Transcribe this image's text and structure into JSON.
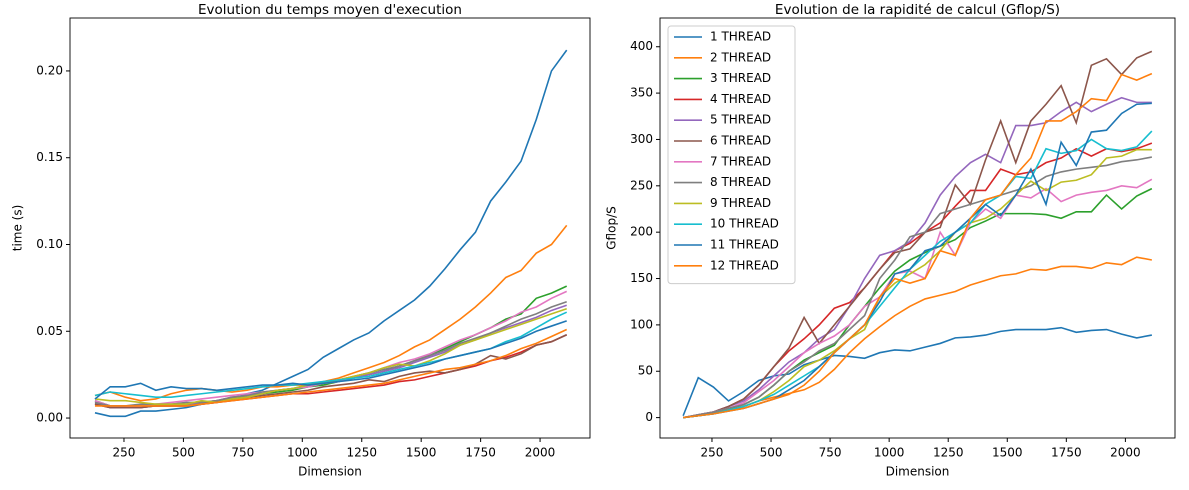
{
  "chart_data": [
    {
      "type": "line",
      "title": "Evolution du temps moyen d'execution",
      "x_label": "Dimension",
      "y_label": "time (s)",
      "x": [
        128,
        192,
        256,
        320,
        384,
        448,
        512,
        576,
        640,
        704,
        768,
        832,
        896,
        960,
        1024,
        1088,
        1152,
        1216,
        1280,
        1344,
        1408,
        1472,
        1536,
        1600,
        1664,
        1728,
        1792,
        1856,
        1920,
        1984,
        2048,
        2112
      ],
      "xlim": [
        23,
        2210
      ],
      "xticks": [
        250,
        500,
        750,
        1000,
        1250,
        1500,
        1750,
        2000
      ],
      "ylim": [
        -0.0115,
        0.2305
      ],
      "yticks": [
        {
          "value": 0,
          "label": "0.00"
        },
        {
          "value": 0.05,
          "label": "0.05"
        },
        {
          "value": 0.1,
          "label": "0.10"
        },
        {
          "value": 0.15,
          "label": "0.15"
        },
        {
          "value": 0.2,
          "label": "0.20"
        }
      ],
      "series": [
        {
          "color": "#1f77b4",
          "values": [
            0.003,
            0.001,
            0.001,
            0.004,
            0.004,
            0.005,
            0.006,
            0.008,
            0.009,
            0.011,
            0.014,
            0.016,
            0.02,
            0.024,
            0.028,
            0.035,
            0.04,
            0.045,
            0.049,
            0.056,
            0.062,
            0.068,
            0.076,
            0.086,
            0.097,
            0.107,
            0.125,
            0.136,
            0.148,
            0.172,
            0.2,
            0.212
          ]
        },
        {
          "color": "#ff7f0e",
          "values": [
            0.013,
            0.015,
            0.012,
            0.01,
            0.011,
            0.014,
            0.016,
            0.017,
            0.016,
            0.015,
            0.016,
            0.018,
            0.018,
            0.019,
            0.019,
            0.021,
            0.023,
            0.026,
            0.029,
            0.032,
            0.036,
            0.041,
            0.045,
            0.051,
            0.057,
            0.064,
            0.072,
            0.081,
            0.085,
            0.095,
            0.1,
            0.111
          ]
        },
        {
          "color": "#2ca02c",
          "values": [
            0.01,
            0.007,
            0.007,
            0.007,
            0.008,
            0.008,
            0.008,
            0.009,
            0.01,
            0.011,
            0.013,
            0.014,
            0.015,
            0.016,
            0.018,
            0.019,
            0.021,
            0.023,
            0.025,
            0.027,
            0.03,
            0.033,
            0.036,
            0.04,
            0.044,
            0.048,
            0.052,
            0.057,
            0.06,
            0.069,
            0.072,
            0.076
          ]
        },
        {
          "color": "#d62728",
          "values": [
            0.008,
            0.006,
            0.006,
            0.006,
            0.007,
            0.007,
            0.007,
            0.008,
            0.009,
            0.01,
            0.011,
            0.012,
            0.013,
            0.014,
            0.014,
            0.015,
            0.016,
            0.017,
            0.018,
            0.019,
            0.021,
            0.022,
            0.024,
            0.026,
            0.028,
            0.03,
            0.033,
            0.035,
            0.038,
            0.042,
            0.044,
            0.048
          ]
        },
        {
          "color": "#9467bd",
          "values": [
            0.009,
            0.006,
            0.006,
            0.006,
            0.007,
            0.007,
            0.008,
            0.009,
            0.01,
            0.012,
            0.013,
            0.014,
            0.016,
            0.017,
            0.018,
            0.02,
            0.021,
            0.023,
            0.025,
            0.027,
            0.029,
            0.032,
            0.035,
            0.038,
            0.042,
            0.045,
            0.049,
            0.052,
            0.055,
            0.058,
            0.062,
            0.065
          ]
        },
        {
          "color": "#8c564b",
          "values": [
            0.008,
            0.006,
            0.006,
            0.006,
            0.007,
            0.007,
            0.007,
            0.008,
            0.01,
            0.011,
            0.012,
            0.013,
            0.014,
            0.015,
            0.016,
            0.018,
            0.019,
            0.02,
            0.022,
            0.021,
            0.024,
            0.026,
            0.027,
            0.026,
            0.028,
            0.031,
            0.036,
            0.034,
            0.037,
            0.042,
            0.044,
            0.048
          ]
        },
        {
          "color": "#e377c2",
          "values": [
            0.01,
            0.007,
            0.007,
            0.007,
            0.008,
            0.009,
            0.01,
            0.011,
            0.012,
            0.013,
            0.014,
            0.015,
            0.016,
            0.017,
            0.018,
            0.02,
            0.021,
            0.024,
            0.026,
            0.029,
            0.032,
            0.034,
            0.037,
            0.041,
            0.045,
            0.048,
            0.052,
            0.056,
            0.061,
            0.064,
            0.069,
            0.073
          ]
        },
        {
          "color": "#7f7f7f",
          "values": [
            0.009,
            0.007,
            0.007,
            0.008,
            0.008,
            0.008,
            0.009,
            0.009,
            0.01,
            0.012,
            0.013,
            0.015,
            0.016,
            0.017,
            0.019,
            0.02,
            0.022,
            0.024,
            0.026,
            0.028,
            0.03,
            0.033,
            0.036,
            0.039,
            0.043,
            0.046,
            0.049,
            0.053,
            0.057,
            0.06,
            0.064,
            0.067
          ]
        },
        {
          "color": "#bcbd22",
          "values": [
            0.011,
            0.01,
            0.01,
            0.009,
            0.008,
            0.008,
            0.008,
            0.01,
            0.009,
            0.011,
            0.012,
            0.014,
            0.016,
            0.017,
            0.019,
            0.02,
            0.022,
            0.024,
            0.026,
            0.029,
            0.031,
            0.03,
            0.033,
            0.037,
            0.042,
            0.045,
            0.048,
            0.051,
            0.054,
            0.057,
            0.06,
            0.063
          ]
        },
        {
          "color": "#17becf",
          "values": [
            0.013,
            0.015,
            0.014,
            0.013,
            0.012,
            0.012,
            0.013,
            0.014,
            0.015,
            0.016,
            0.017,
            0.018,
            0.019,
            0.019,
            0.02,
            0.021,
            0.022,
            0.023,
            0.024,
            0.026,
            0.028,
            0.03,
            0.032,
            0.034,
            0.036,
            0.038,
            0.04,
            0.044,
            0.047,
            0.052,
            0.057,
            0.061
          ]
        },
        {
          "color": "#1f77b4",
          "values": [
            0.011,
            0.018,
            0.018,
            0.02,
            0.016,
            0.018,
            0.017,
            0.017,
            0.016,
            0.017,
            0.018,
            0.019,
            0.019,
            0.02,
            0.019,
            0.02,
            0.021,
            0.022,
            0.023,
            0.025,
            0.027,
            0.029,
            0.031,
            0.034,
            0.036,
            0.038,
            0.04,
            0.043,
            0.046,
            0.05,
            0.053,
            0.056
          ]
        },
        {
          "color": "#ff7f0e",
          "values": [
            0.007,
            0.007,
            0.007,
            0.007,
            0.007,
            0.007,
            0.007,
            0.008,
            0.009,
            0.01,
            0.011,
            0.012,
            0.013,
            0.014,
            0.015,
            0.016,
            0.017,
            0.018,
            0.019,
            0.02,
            0.022,
            0.024,
            0.026,
            0.028,
            0.029,
            0.031,
            0.033,
            0.036,
            0.04,
            0.043,
            0.047,
            0.051
          ]
        }
      ]
    },
    {
      "type": "line",
      "title": "Evolution de la rapidité de calcul (Gflop/S)",
      "x_label": "Dimension",
      "y_label": "Gflop/S",
      "legend": "upper left",
      "x": [
        128,
        192,
        256,
        320,
        384,
        448,
        512,
        576,
        640,
        704,
        768,
        832,
        896,
        960,
        1024,
        1088,
        1152,
        1216,
        1280,
        1344,
        1408,
        1472,
        1536,
        1600,
        1664,
        1728,
        1792,
        1856,
        1920,
        1984,
        2048,
        2112
      ],
      "xlim": [
        30,
        2210
      ],
      "xticks": [
        250,
        500,
        750,
        1000,
        1250,
        1500,
        1750,
        2000
      ],
      "ylim": [
        -22,
        431
      ],
      "yticks": [
        0,
        50,
        100,
        150,
        200,
        250,
        300,
        350,
        400
      ],
      "series": [
        {
          "name": "1 THREAD",
          "color": "#1f77b4",
          "values": [
            2,
            43,
            33,
            18,
            28,
            40,
            45,
            47,
            57,
            62,
            67,
            66,
            64,
            70,
            73,
            72,
            76,
            80,
            86,
            87,
            89,
            93,
            95,
            95,
            95,
            97,
            92,
            94,
            95,
            90,
            86,
            89
          ]
        },
        {
          "name": "2 THREAD",
          "color": "#ff7f0e",
          "values": [
            0,
            2,
            5,
            8,
            12,
            18,
            22,
            26,
            30,
            38,
            52,
            70,
            85,
            98,
            110,
            120,
            128,
            132,
            136,
            143,
            148,
            153,
            155,
            160,
            159,
            163,
            163,
            161,
            167,
            165,
            173,
            170
          ]
        },
        {
          "name": "3 THREAD",
          "color": "#2ca02c",
          "values": [
            0,
            2,
            5,
            9,
            14,
            22,
            35,
            50,
            62,
            70,
            78,
            100,
            120,
            140,
            158,
            170,
            178,
            185,
            192,
            205,
            212,
            220,
            220,
            220,
            219,
            215,
            222,
            222,
            240,
            225,
            239,
            247
          ]
        },
        {
          "name": "4 THREAD",
          "color": "#d62728",
          "values": [
            0,
            3,
            6,
            12,
            20,
            35,
            55,
            72,
            85,
            100,
            118,
            124,
            140,
            160,
            180,
            188,
            200,
            210,
            228,
            245,
            245,
            268,
            262,
            265,
            275,
            280,
            290,
            282,
            290,
            287,
            290,
            296
          ]
        },
        {
          "name": "5 THREAD",
          "color": "#9467bd",
          "values": [
            0,
            3,
            6,
            12,
            18,
            30,
            45,
            60,
            70,
            85,
            95,
            120,
            150,
            175,
            180,
            190,
            210,
            240,
            260,
            275,
            284,
            275,
            315,
            315,
            318,
            330,
            340,
            330,
            338,
            345,
            340,
            340
          ]
        },
        {
          "name": "6 THREAD",
          "color": "#8c564b",
          "values": [
            0,
            3,
            6,
            12,
            20,
            35,
            55,
            75,
            108,
            80,
            100,
            120,
            140,
            160,
            178,
            182,
            200,
            205,
            251,
            230,
            278,
            320,
            275,
            320,
            338,
            358,
            318,
            380,
            387,
            370,
            388,
            395
          ]
        },
        {
          "name": "7 THREAD",
          "color": "#e377c2",
          "values": [
            0,
            3,
            6,
            10,
            16,
            28,
            40,
            55,
            70,
            80,
            88,
            100,
            120,
            130,
            155,
            158,
            150,
            200,
            175,
            210,
            225,
            215,
            240,
            237,
            247,
            233,
            240,
            243,
            245,
            250,
            248,
            257
          ]
        },
        {
          "name": "8 THREAD",
          "color": "#7f7f7f",
          "values": [
            0,
            3,
            6,
            10,
            14,
            22,
            35,
            50,
            60,
            72,
            80,
            95,
            110,
            150,
            170,
            195,
            200,
            220,
            225,
            230,
            235,
            240,
            245,
            250,
            260,
            265,
            268,
            270,
            272,
            276,
            278,
            281
          ]
        },
        {
          "name": "9 THREAD",
          "color": "#bcbd22",
          "values": [
            0,
            2,
            4,
            8,
            12,
            18,
            28,
            40,
            55,
            62,
            72,
            85,
            95,
            130,
            145,
            155,
            165,
            180,
            200,
            210,
            215,
            225,
            240,
            255,
            245,
            254,
            256,
            262,
            280,
            282,
            289,
            289
          ]
        },
        {
          "name": "10 THREAD",
          "color": "#17becf",
          "values": [
            0,
            2,
            4,
            8,
            12,
            18,
            25,
            35,
            45,
            55,
            70,
            85,
            100,
            120,
            140,
            160,
            175,
            190,
            200,
            210,
            230,
            240,
            260,
            258,
            290,
            285,
            288,
            300,
            290,
            288,
            292,
            309
          ]
        },
        {
          "name": "11 THREAD",
          "color": "#1f77b4",
          "values": [
            0,
            2,
            4,
            7,
            10,
            15,
            20,
            30,
            40,
            55,
            70,
            85,
            100,
            125,
            155,
            160,
            180,
            185,
            200,
            215,
            230,
            218,
            240,
            268,
            230,
            297,
            272,
            308,
            310,
            328,
            338,
            339
          ]
        },
        {
          "name": "12 THREAD",
          "color": "#ff7f0e",
          "values": [
            0,
            2,
            4,
            7,
            10,
            15,
            20,
            25,
            35,
            50,
            70,
            85,
            100,
            130,
            150,
            145,
            150,
            180,
            175,
            215,
            235,
            240,
            262,
            280,
            320,
            320,
            330,
            344,
            342,
            370,
            364,
            371
          ]
        }
      ]
    }
  ]
}
